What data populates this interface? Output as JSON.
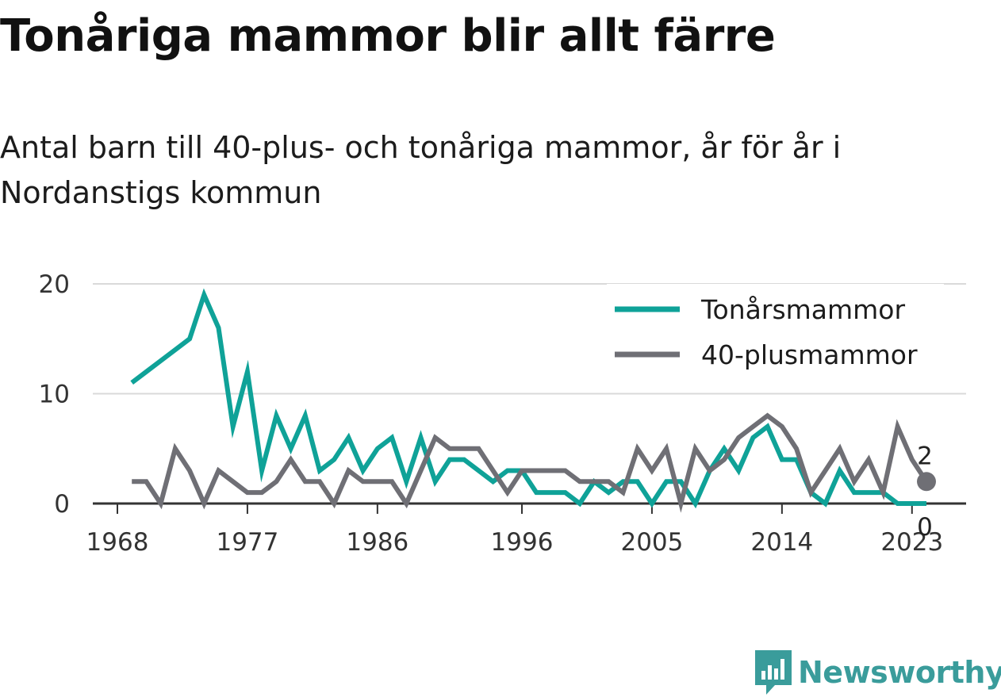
{
  "title": "Tonåriga mammor blir allt färre",
  "subtitle": "Antal barn till 40-plus- och tonåriga mammor, år för år i Nordanstigs kommun",
  "brand": {
    "name": "Newsworthy",
    "color": "#3a9c9b"
  },
  "chart_data": {
    "type": "line",
    "title": "Tonåriga mammor blir allt färre",
    "subtitle": "Antal barn till 40-plus- och tonåriga mammor, år för år i Nordanstigs kommun",
    "xlabel": "",
    "ylabel": "",
    "x": [
      1969,
      1970,
      1971,
      1972,
      1973,
      1974,
      1975,
      1976,
      1977,
      1978,
      1979,
      1980,
      1981,
      1982,
      1983,
      1984,
      1985,
      1986,
      1987,
      1988,
      1989,
      1990,
      1991,
      1992,
      1993,
      1994,
      1995,
      1996,
      1997,
      1998,
      1999,
      2000,
      2001,
      2002,
      2003,
      2004,
      2005,
      2006,
      2007,
      2008,
      2009,
      2010,
      2011,
      2012,
      2013,
      2014,
      2015,
      2016,
      2017,
      2018,
      2019,
      2020,
      2021,
      2022,
      2023,
      2024
    ],
    "x_ticks": [
      "1968",
      "1977",
      "1986",
      "1996",
      "2005",
      "2014",
      "2023"
    ],
    "xlim": [
      1968,
      2025
    ],
    "ylim": [
      0,
      20
    ],
    "y_ticks": [
      "0",
      "10",
      "20"
    ],
    "grid": true,
    "legend_position": "top-right",
    "series": [
      {
        "name": "Tonårsmammor",
        "color": "#0fa298",
        "values": [
          11,
          12,
          13,
          14,
          15,
          19,
          16,
          7,
          12,
          3,
          8,
          5,
          8,
          3,
          4,
          6,
          3,
          5,
          6,
          2,
          6,
          2,
          4,
          4,
          3,
          2,
          3,
          3,
          1,
          1,
          1,
          0,
          2,
          1,
          2,
          2,
          0,
          2,
          2,
          0,
          3,
          5,
          3,
          6,
          7,
          4,
          4,
          1,
          0,
          3,
          1,
          1,
          1,
          0,
          0,
          0
        ],
        "end_label": "0"
      },
      {
        "name": "40-plusmammor",
        "color": "#6f6f75",
        "values": [
          2,
          2,
          0,
          5,
          3,
          0,
          3,
          2,
          1,
          1,
          2,
          4,
          2,
          2,
          0,
          3,
          2,
          2,
          2,
          0,
          3,
          6,
          5,
          5,
          5,
          3,
          1,
          3,
          3,
          3,
          3,
          2,
          2,
          2,
          1,
          5,
          3,
          5,
          0,
          5,
          3,
          4,
          6,
          7,
          8,
          7,
          5,
          1,
          3,
          5,
          2,
          4,
          1,
          7,
          4,
          2
        ],
        "end_label": "2"
      }
    ]
  }
}
